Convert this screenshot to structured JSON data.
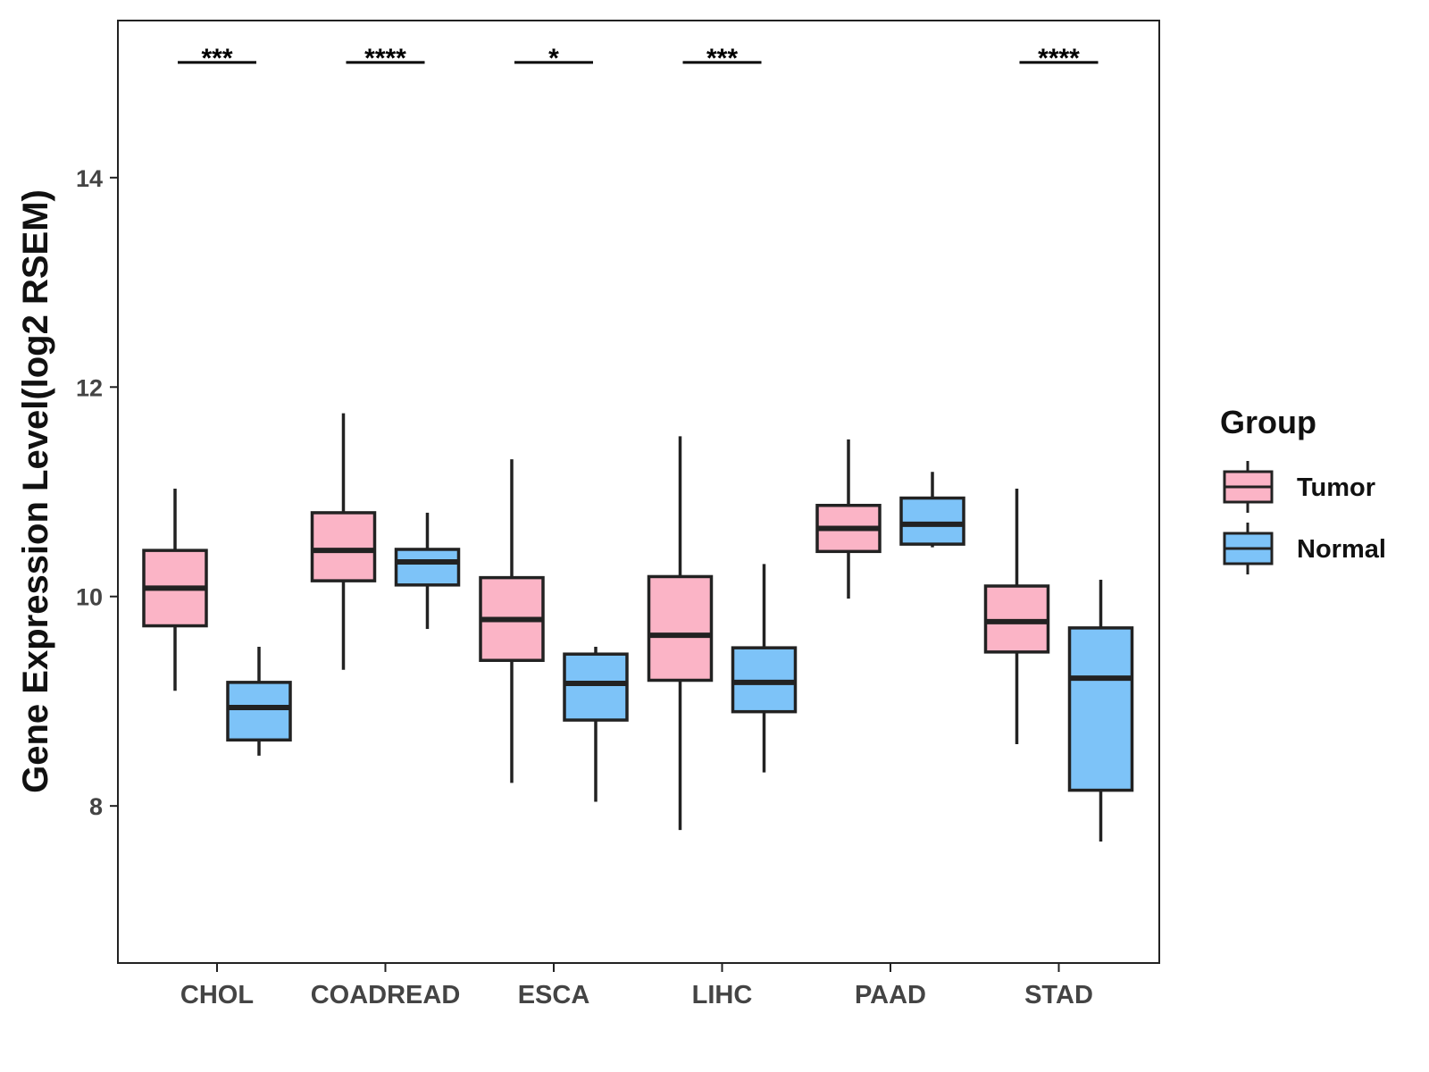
{
  "chart_data": {
    "type": "boxplot",
    "title": "",
    "xlabel": "",
    "ylabel": "Gene Expression Level(log2 RSEM)",
    "ylim": [
      6.5,
      15.5
    ],
    "yticks": [
      8,
      10,
      12,
      14
    ],
    "categories": [
      "CHOL",
      "COADREAD",
      "ESCA",
      "LIHC",
      "PAAD",
      "STAD"
    ],
    "series": [
      {
        "name": "Tumor",
        "color": "#fbb4c6",
        "boxes": [
          {
            "min": 9.1,
            "q1": 9.72,
            "median": 10.08,
            "q3": 10.44,
            "max": 11.03
          },
          {
            "min": 9.3,
            "q1": 10.15,
            "median": 10.44,
            "q3": 10.8,
            "max": 11.75
          },
          {
            "min": 8.22,
            "q1": 9.39,
            "median": 9.78,
            "q3": 10.18,
            "max": 11.31
          },
          {
            "min": 7.77,
            "q1": 9.2,
            "median": 9.63,
            "q3": 10.19,
            "max": 11.53
          },
          {
            "min": 9.98,
            "q1": 10.43,
            "median": 10.65,
            "q3": 10.87,
            "max": 11.5
          },
          {
            "min": 8.59,
            "q1": 9.47,
            "median": 9.76,
            "q3": 10.1,
            "max": 11.03
          }
        ]
      },
      {
        "name": "Normal",
        "color": "#7dc3f8",
        "boxes": [
          {
            "min": 8.48,
            "q1": 8.63,
            "median": 8.94,
            "q3": 9.18,
            "max": 9.52
          },
          {
            "min": 9.69,
            "q1": 10.11,
            "median": 10.33,
            "q3": 10.45,
            "max": 10.8
          },
          {
            "min": 8.04,
            "q1": 8.82,
            "median": 9.17,
            "q3": 9.45,
            "max": 9.52
          },
          {
            "min": 8.32,
            "q1": 8.9,
            "median": 9.18,
            "q3": 9.51,
            "max": 10.31
          },
          {
            "min": 10.47,
            "q1": 10.5,
            "median": 10.69,
            "q3": 10.94,
            "max": 11.19
          },
          {
            "min": 7.66,
            "q1": 8.15,
            "median": 9.22,
            "q3": 9.7,
            "max": 10.16
          }
        ]
      }
    ],
    "significance": [
      {
        "category": "CHOL",
        "label": "***"
      },
      {
        "category": "COADREAD",
        "label": "****"
      },
      {
        "category": "ESCA",
        "label": "*"
      },
      {
        "category": "LIHC",
        "label": "***"
      },
      {
        "category": "PAAD",
        "label": ""
      },
      {
        "category": "STAD",
        "label": "****"
      }
    ],
    "significance_y": 15.1,
    "legend": {
      "title": "Group",
      "position": "right",
      "entries": [
        "Tumor",
        "Normal"
      ]
    },
    "grid": false
  }
}
